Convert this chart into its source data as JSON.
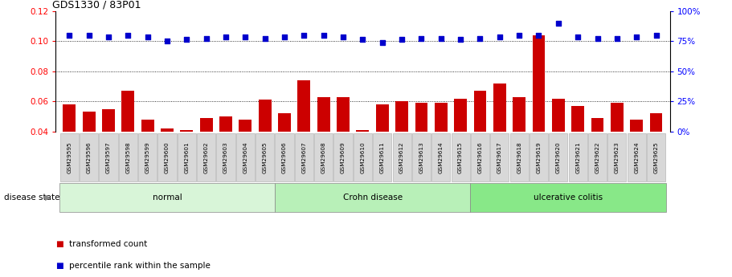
{
  "title": "GDS1330 / 83P01",
  "samples": [
    "GSM29595",
    "GSM29596",
    "GSM29597",
    "GSM29598",
    "GSM29599",
    "GSM29600",
    "GSM29601",
    "GSM29602",
    "GSM29603",
    "GSM29604",
    "GSM29605",
    "GSM29606",
    "GSM29607",
    "GSM29608",
    "GSM29609",
    "GSM29610",
    "GSM29611",
    "GSM29612",
    "GSM29613",
    "GSM29614",
    "GSM29615",
    "GSM29616",
    "GSM29617",
    "GSM29618",
    "GSM29619",
    "GSM29620",
    "GSM29621",
    "GSM29622",
    "GSM29623",
    "GSM29624",
    "GSM29625"
  ],
  "transformed_count": [
    0.058,
    0.053,
    0.055,
    0.067,
    0.048,
    0.042,
    0.041,
    0.049,
    0.05,
    0.048,
    0.061,
    0.052,
    0.074,
    0.063,
    0.063,
    0.041,
    0.058,
    0.06,
    0.059,
    0.059,
    0.062,
    0.067,
    0.072,
    0.063,
    0.104,
    0.062,
    0.057,
    0.049,
    0.059,
    0.048,
    0.052
  ],
  "percentile_rank": [
    0.104,
    0.104,
    0.103,
    0.104,
    0.103,
    0.1,
    0.101,
    0.102,
    0.103,
    0.103,
    0.102,
    0.103,
    0.104,
    0.104,
    0.103,
    0.101,
    0.099,
    0.101,
    0.102,
    0.102,
    0.101,
    0.102,
    0.103,
    0.104,
    0.104,
    0.112,
    0.103,
    0.102,
    0.102,
    0.103,
    0.104
  ],
  "group_configs": [
    {
      "label": "normal",
      "start": 0,
      "end": 10,
      "color": "#d8f5d8"
    },
    {
      "label": "Crohn disease",
      "start": 11,
      "end": 20,
      "color": "#b8f0b8"
    },
    {
      "label": "ulcerative colitis",
      "start": 21,
      "end": 30,
      "color": "#88e888"
    }
  ],
  "bar_color": "#cc0000",
  "dot_color": "#0000cc",
  "ylim_left": [
    0.04,
    0.12
  ],
  "ylim_right": [
    0,
    100
  ],
  "yticks_left": [
    0.04,
    0.06,
    0.08,
    0.1,
    0.12
  ],
  "yticks_right": [
    0,
    25,
    50,
    75,
    100
  ],
  "grid_values": [
    0.06,
    0.08,
    0.1
  ],
  "disease_state_label": "disease state",
  "legend_bar_label": "transformed count",
  "legend_dot_label": "percentile rank within the sample",
  "background_color": "#ffffff",
  "label_box_color": "#d8d8d8"
}
